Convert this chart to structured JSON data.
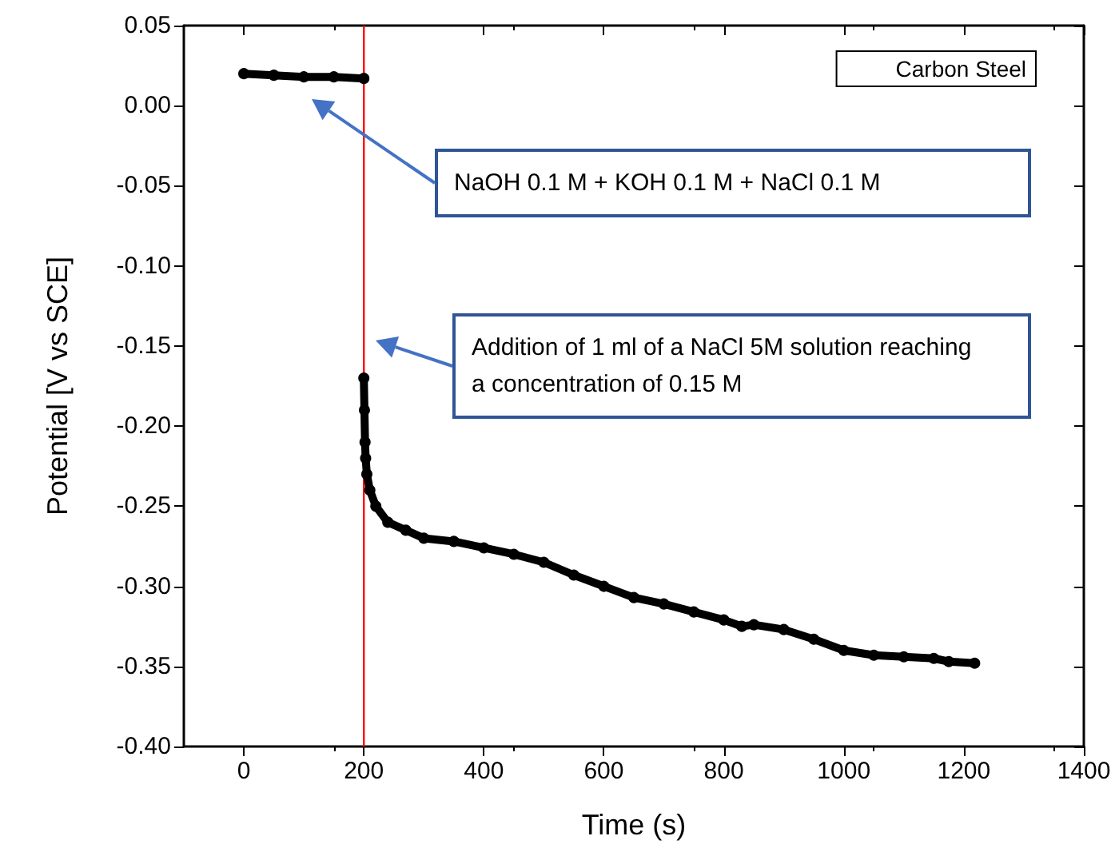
{
  "chart_data": {
    "type": "line",
    "xlabel": "Time (s)",
    "ylabel": "Potential [V vs SCE]",
    "xlim": [
      -100,
      1400
    ],
    "xticks": [
      0,
      200,
      400,
      600,
      800,
      1000,
      1200,
      1400
    ],
    "ylim": [
      -0.4,
      0.05
    ],
    "yticks": [
      {
        "value": -0.4,
        "label": "-0.40"
      },
      {
        "value": -0.35,
        "label": "-0.35"
      },
      {
        "value": -0.3,
        "label": "-0.30"
      },
      {
        "value": -0.25,
        "label": "-0.25"
      },
      {
        "value": -0.2,
        "label": "-0.20"
      },
      {
        "value": -0.15,
        "label": "-0.15"
      },
      {
        "value": -0.1,
        "label": "-0.10"
      },
      {
        "value": -0.05,
        "label": "-0.05"
      },
      {
        "value": 0,
        "label": "0.00"
      },
      {
        "value": 0.05,
        "label": "0.05"
      }
    ],
    "grid": false,
    "legend": "top right",
    "marker": "circle",
    "series": [
      {
        "name": "Carbon Steel",
        "color": "#000000",
        "x": [
          0,
          50,
          100,
          150,
          200,
          null,
          200,
          201,
          202,
          203,
          205,
          210,
          220,
          240,
          270,
          300,
          350,
          400,
          450,
          500,
          550,
          600,
          650,
          700,
          750,
          800,
          830,
          850,
          900,
          950,
          1000,
          1050,
          1100,
          1150,
          1175,
          1218
        ],
        "values": [
          0.02,
          0.019,
          0.018,
          0.018,
          0.017,
          null,
          -0.17,
          -0.19,
          -0.21,
          -0.22,
          -0.23,
          -0.24,
          -0.25,
          -0.26,
          -0.265,
          -0.27,
          -0.272,
          -0.276,
          -0.28,
          -0.285,
          -0.293,
          -0.3,
          -0.307,
          -0.311,
          -0.316,
          -0.321,
          -0.325,
          -0.324,
          -0.327,
          -0.333,
          -0.34,
          -0.343,
          -0.344,
          -0.345,
          -0.347,
          -0.348
        ]
      }
    ],
    "ref_lines": [
      {
        "axis": "x",
        "value": 200,
        "color": "#ff0000"
      }
    ],
    "annotations": [
      "NaOH 0.1 M + KOH 0.1 M + NaCl 0.1 M",
      "Addition of 1 ml of a NaCl 5M solution reaching a concentration of 0.15 M"
    ]
  }
}
